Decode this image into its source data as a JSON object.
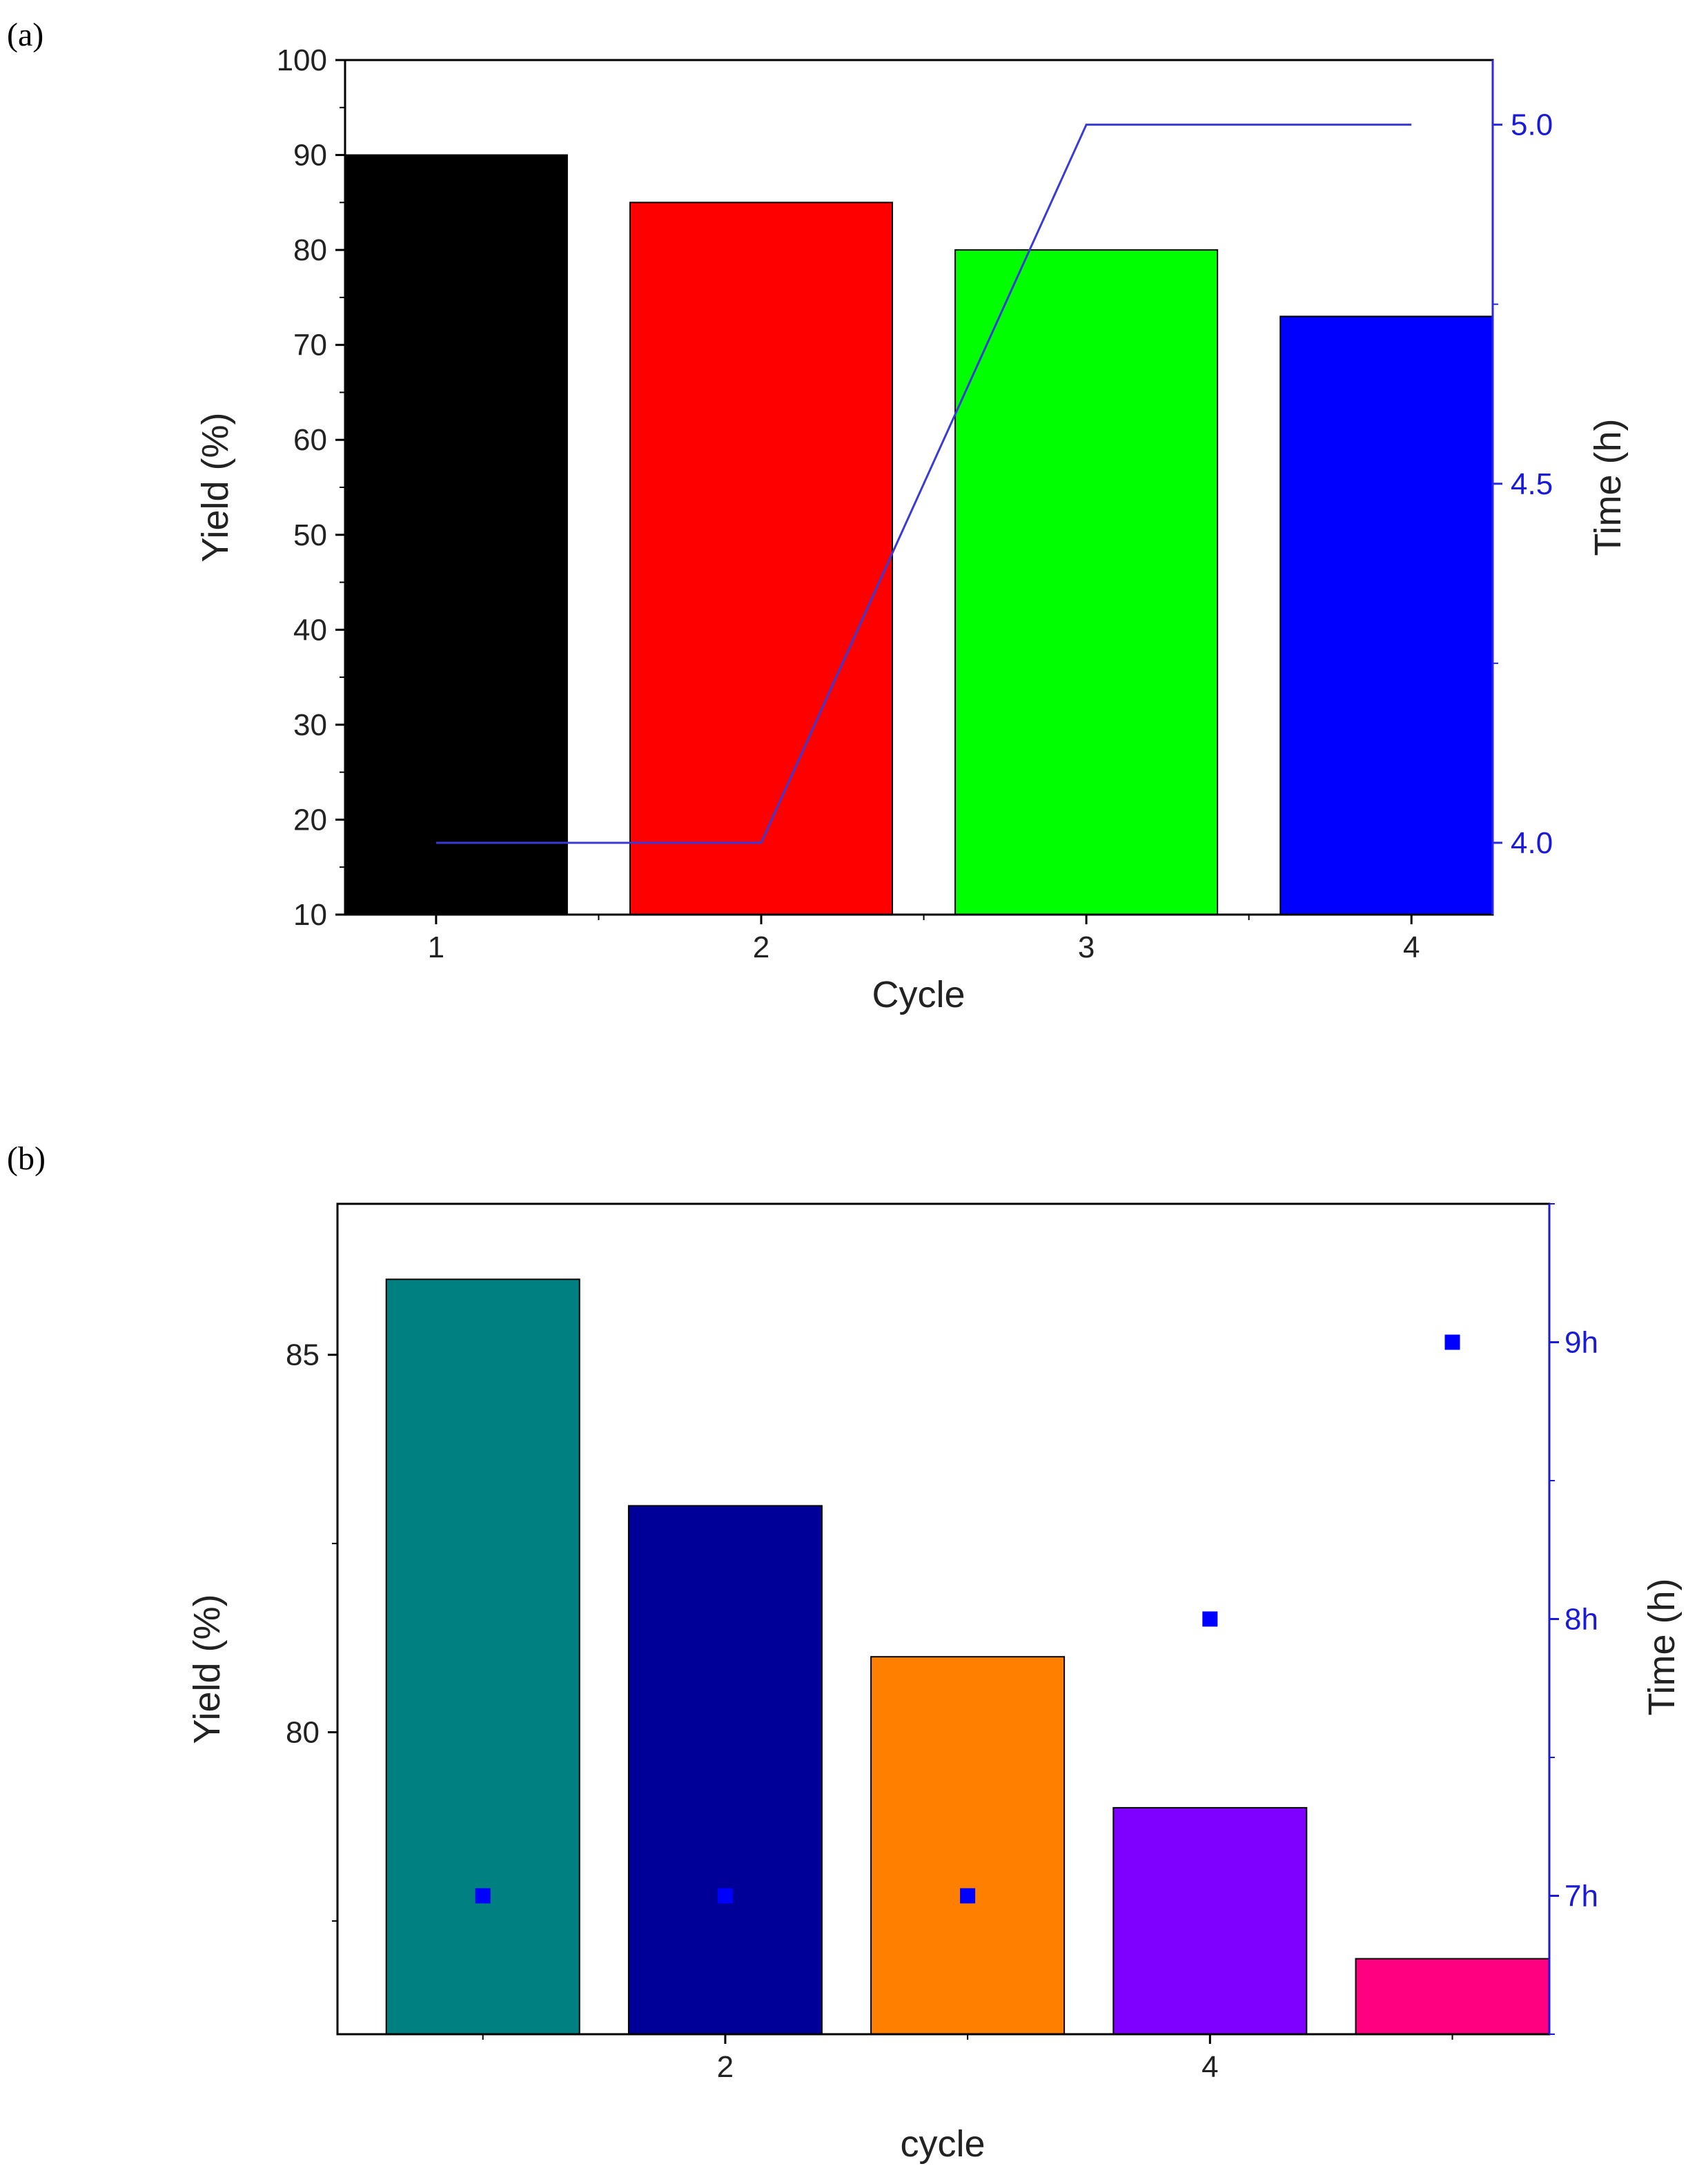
{
  "chart_data": [
    {
      "panel": "(a)",
      "type": "bar",
      "xlabel": "Cycle",
      "ylabel": "Yield (%)",
      "y2label": "Time (h)",
      "categories": [
        "1",
        "2",
        "3",
        "4"
      ],
      "x": [
        1,
        2,
        3,
        4
      ],
      "xlim": [
        0.72,
        4.25
      ],
      "ylim": [
        10,
        100
      ],
      "yticks": [
        10,
        20,
        30,
        40,
        50,
        60,
        70,
        80,
        90,
        100
      ],
      "y2lim": [
        3.9,
        5.09
      ],
      "y2ticks": [
        "4.0",
        "4.5",
        "5.0"
      ],
      "grid": false,
      "series": [
        {
          "name": "Yield (%)",
          "type": "bar",
          "axis": "left",
          "values": [
            90,
            85,
            80,
            73
          ],
          "colors": [
            "#000000",
            "#ff0000",
            "#00ff00",
            "#0000ff"
          ]
        },
        {
          "name": "Time (h)",
          "type": "line",
          "axis": "right",
          "values": [
            4.0,
            4.0,
            5.0,
            5.0
          ],
          "color": "#3a3ad6"
        }
      ]
    },
    {
      "panel": "(b)",
      "type": "bar",
      "xlabel": "cycle",
      "ylabel": "Yield (%)",
      "y2label": "Time (h)",
      "x": [
        1,
        2,
        3,
        4,
        5
      ],
      "xticks": [
        "2",
        "4"
      ],
      "xlim": [
        0.4,
        5.4
      ],
      "ylim": [
        76,
        87
      ],
      "yticks": [
        85,
        80
      ],
      "y2lim": [
        6.5,
        9.5
      ],
      "y2ticks": [
        "7h",
        "8h",
        "9h"
      ],
      "grid": false,
      "series": [
        {
          "name": "Yield (%)",
          "type": "bar",
          "axis": "left",
          "values": [
            86,
            83,
            81,
            79,
            77
          ],
          "colors": [
            "#008080",
            "#000099",
            "#ff8000",
            "#8000ff",
            "#ff0080"
          ]
        },
        {
          "name": "Time (h)",
          "type": "scatter",
          "axis": "right",
          "values": [
            7,
            7,
            7,
            8,
            9
          ],
          "color": "#0000ff"
        }
      ]
    }
  ]
}
